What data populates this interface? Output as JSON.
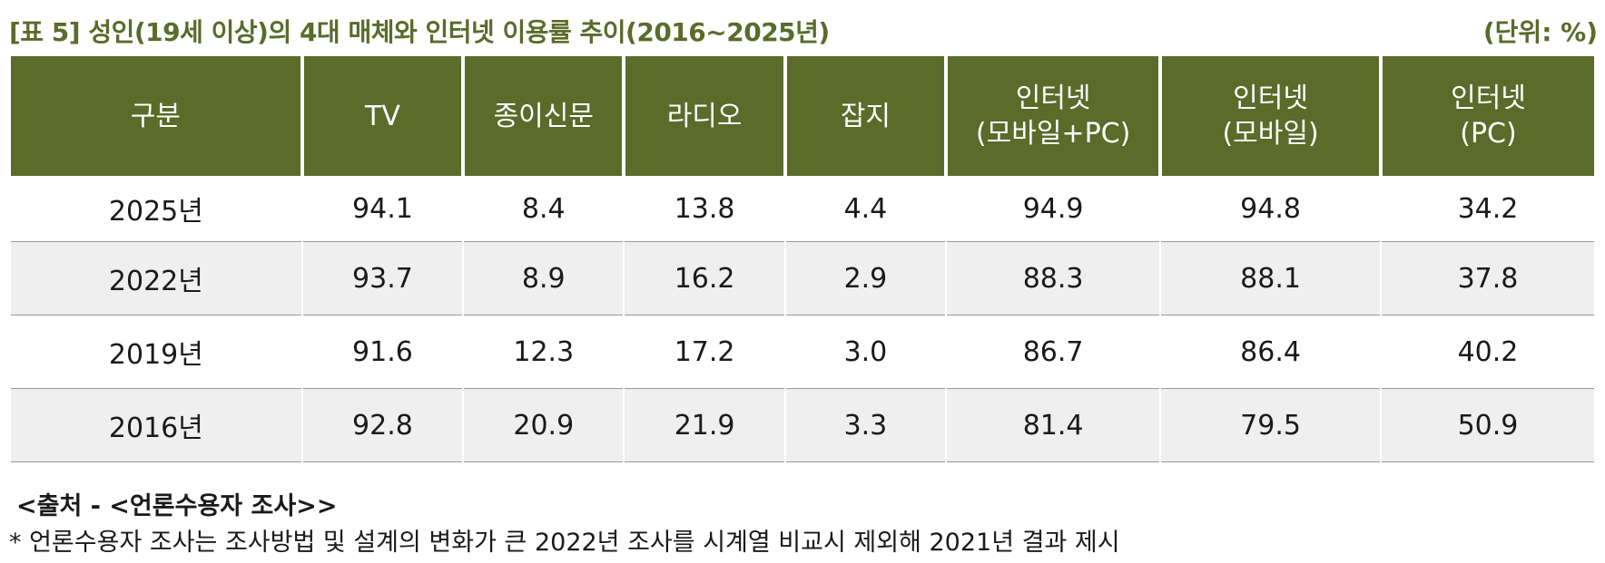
{
  "title": "[표 5] 성인(19세 이상)의 4대 매체와 인터넷 이용률 추이(2016~2025년)",
  "unit": "(단위: %)",
  "headers": [
    {
      "line1": "구분",
      "line2": ""
    },
    {
      "line1": "TV",
      "line2": ""
    },
    {
      "line1": "종이신문",
      "line2": ""
    },
    {
      "line1": "라디오",
      "line2": ""
    },
    {
      "line1": "잡지",
      "line2": ""
    },
    {
      "line1": "인터넷",
      "line2": "(모바일+PC)"
    },
    {
      "line1": "인터넷",
      "line2": "(모바일)"
    },
    {
      "line1": "인터넷",
      "line2": "(PC)"
    }
  ],
  "rows": [
    [
      "2025년",
      "94.1",
      "8.4",
      "13.8",
      "4.4",
      "94.9",
      "94.8",
      "34.2"
    ],
    [
      "2022년",
      "93.7",
      "8.9",
      "16.2",
      "2.9",
      "88.3",
      "88.1",
      "37.8"
    ],
    [
      "2019년",
      "91.6",
      "12.3",
      "17.2",
      "3.0",
      "86.7",
      "86.4",
      "40.2"
    ],
    [
      "2016년",
      "92.8",
      "20.9",
      "21.9",
      "3.3",
      "81.4",
      "79.5",
      "50.9"
    ]
  ],
  "source": "<출처 - <언론수용자 조사>>",
  "note": "* 언론수용자 조사는 조사방법 및 설계의 변화가 큰 2022년 조사를 시계열 비교시 제외해 2021년 결과 제시"
}
